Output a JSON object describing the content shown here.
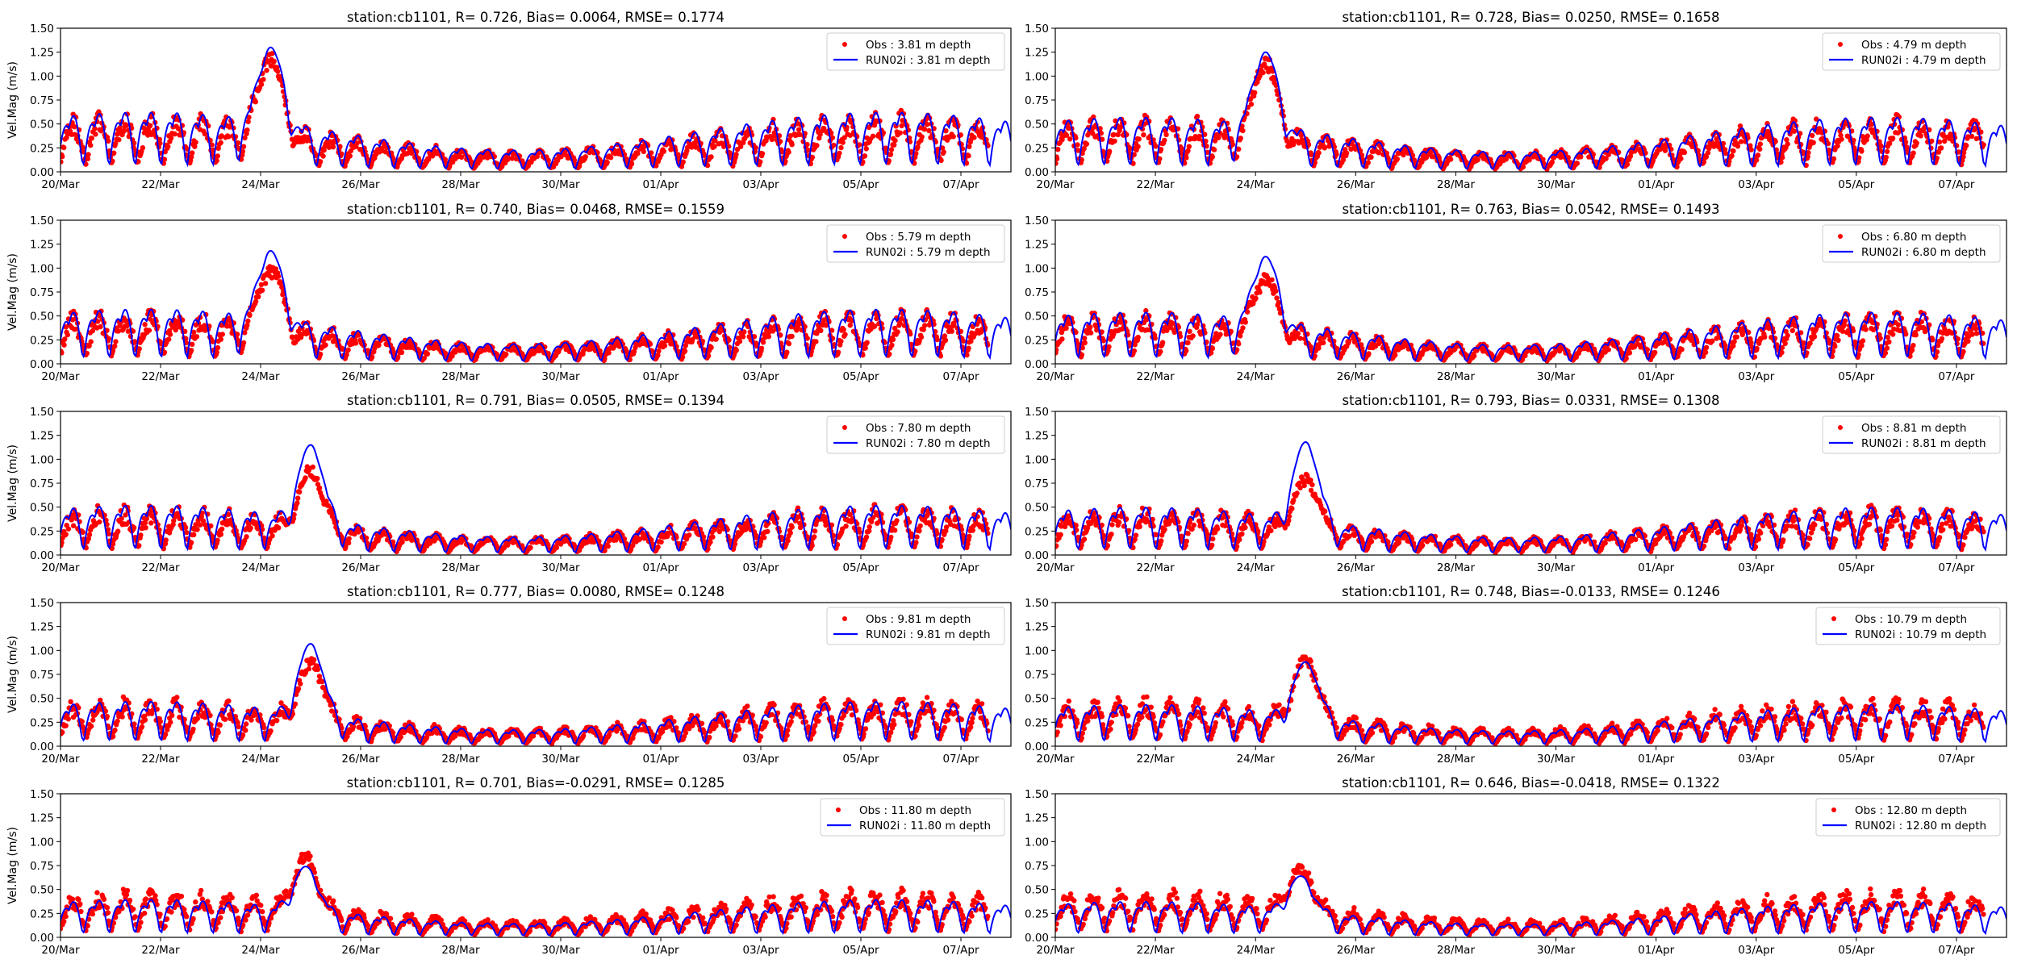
{
  "chart_data": [
    {
      "type": "scatter+line",
      "title": "station:cb1101, R= 0.726, Bias= 0.0064, RMSE= 0.1774",
      "stats": {
        "station": "cb1101",
        "R": 0.726,
        "Bias": 0.0064,
        "RMSE": 0.1774
      },
      "ylabel": "Vel.Mag (m/s)",
      "ylim": [
        0,
        1.5
      ],
      "legend": [
        "Obs : 3.81 m depth",
        "RUN02i : 3.81 m depth"
      ],
      "legend_position": "upper-right",
      "peak": {
        "obs": 1.27,
        "model": 1.3,
        "day": 4.2
      },
      "series": [
        {
          "name": "Obs : 3.81 m depth",
          "kind": "scatter",
          "mean_amplitude": 0.55
        },
        {
          "name": "RUN02i : 3.81 m depth",
          "kind": "line",
          "mean_amplitude": 0.6
        }
      ]
    },
    {
      "type": "scatter+line",
      "title": "station:cb1101, R= 0.728, Bias= 0.0250, RMSE= 0.1658",
      "stats": {
        "station": "cb1101",
        "R": 0.728,
        "Bias": 0.025,
        "RMSE": 0.1658
      },
      "ylabel": "",
      "ylim": [
        0,
        1.5
      ],
      "legend": [
        "Obs : 4.79 m depth",
        "RUN02i : 4.79 m depth"
      ],
      "legend_position": "upper-right",
      "peak": {
        "obs": 1.22,
        "model": 1.25,
        "day": 4.2
      },
      "series": [
        {
          "name": "Obs : 4.79 m depth",
          "kind": "scatter",
          "mean_amplitude": 0.52
        },
        {
          "name": "RUN02i : 4.79 m depth",
          "kind": "line",
          "mean_amplitude": 0.55
        }
      ]
    },
    {
      "type": "scatter+line",
      "title": "station:cb1101, R= 0.740, Bias= 0.0468, RMSE= 0.1559",
      "stats": {
        "station": "cb1101",
        "R": 0.74,
        "Bias": 0.0468,
        "RMSE": 0.1559
      },
      "ylabel": "Vel.Mag (m/s)",
      "ylim": [
        0,
        1.5
      ],
      "legend": [
        "Obs : 5.79 m depth",
        "RUN02i : 5.79 m depth"
      ],
      "legend_position": "upper-right",
      "peak": {
        "obs": 1.05,
        "model": 1.18,
        "day": 4.2
      },
      "series": [
        {
          "name": "Obs : 5.79 m depth",
          "kind": "scatter",
          "mean_amplitude": 0.5
        },
        {
          "name": "RUN02i : 5.79 m depth",
          "kind": "line",
          "mean_amplitude": 0.55
        }
      ]
    },
    {
      "type": "scatter+line",
      "title": "station:cb1101, R= 0.763, Bias= 0.0542, RMSE= 0.1493",
      "stats": {
        "station": "cb1101",
        "R": 0.763,
        "Bias": 0.0542,
        "RMSE": 0.1493
      },
      "ylabel": "",
      "ylim": [
        0,
        1.5
      ],
      "legend": [
        "Obs : 6.80 m depth",
        "RUN02i : 6.80 m depth"
      ],
      "legend_position": "upper-right",
      "peak": {
        "obs": 0.95,
        "model": 1.12,
        "day": 4.2
      },
      "series": [
        {
          "name": "Obs : 6.80 m depth",
          "kind": "scatter",
          "mean_amplitude": 0.48
        },
        {
          "name": "RUN02i : 6.80 m depth",
          "kind": "line",
          "mean_amplitude": 0.52
        }
      ]
    },
    {
      "type": "scatter+line",
      "title": "station:cb1101, R= 0.791, Bias= 0.0505, RMSE= 0.1394",
      "stats": {
        "station": "cb1101",
        "R": 0.791,
        "Bias": 0.0505,
        "RMSE": 0.1394
      },
      "ylabel": "Vel.Mag (m/s)",
      "ylim": [
        0,
        1.5
      ],
      "legend": [
        "Obs : 7.80 m depth",
        "RUN02i : 7.80 m depth"
      ],
      "legend_position": "upper-right",
      "peak": {
        "obs": 0.95,
        "model": 1.15,
        "day": 5.0
      },
      "series": [
        {
          "name": "Obs : 7.80 m depth",
          "kind": "scatter",
          "mean_amplitude": 0.46
        },
        {
          "name": "RUN02i : 7.80 m depth",
          "kind": "line",
          "mean_amplitude": 0.5
        }
      ]
    },
    {
      "type": "scatter+line",
      "title": "station:cb1101, R= 0.793, Bias= 0.0331, RMSE= 0.1308",
      "stats": {
        "station": "cb1101",
        "R": 0.793,
        "Bias": 0.0331,
        "RMSE": 0.1308
      },
      "ylabel": "",
      "ylim": [
        0,
        1.5
      ],
      "legend": [
        "Obs : 8.81 m depth",
        "RUN02i : 8.81 m depth"
      ],
      "legend_position": "upper-right",
      "peak": {
        "obs": 0.85,
        "model": 1.18,
        "day": 5.0
      },
      "series": [
        {
          "name": "Obs : 8.81 m depth",
          "kind": "scatter",
          "mean_amplitude": 0.45
        },
        {
          "name": "RUN02i : 8.81 m depth",
          "kind": "line",
          "mean_amplitude": 0.48
        }
      ]
    },
    {
      "type": "scatter+line",
      "title": "station:cb1101, R= 0.777, Bias= 0.0080, RMSE= 0.1248",
      "stats": {
        "station": "cb1101",
        "R": 0.777,
        "Bias": 0.008,
        "RMSE": 0.1248
      },
      "ylabel": "Vel.Mag (m/s)",
      "ylim": [
        0,
        1.5
      ],
      "legend": [
        "Obs : 9.81 m depth",
        "RUN02i : 9.81 m depth"
      ],
      "legend_position": "upper-right",
      "peak": {
        "obs": 0.95,
        "model": 1.07,
        "day": 5.0
      },
      "series": [
        {
          "name": "Obs : 9.81 m depth",
          "kind": "scatter",
          "mean_amplitude": 0.45
        },
        {
          "name": "RUN02i : 9.81 m depth",
          "kind": "line",
          "mean_amplitude": 0.45
        }
      ]
    },
    {
      "type": "scatter+line",
      "title": "station:cb1101, R= 0.748, Bias=-0.0133, RMSE= 0.1246",
      "stats": {
        "station": "cb1101",
        "R": 0.748,
        "Bias": -0.0133,
        "RMSE": 0.1246
      },
      "ylabel": "",
      "ylim": [
        0,
        1.5
      ],
      "legend": [
        "Obs : 10.79 m depth",
        "RUN02i : 10.79 m depth"
      ],
      "legend_position": "upper-right",
      "peak": {
        "obs": 0.97,
        "model": 0.88,
        "day": 5.0
      },
      "series": [
        {
          "name": "Obs : 10.79 m depth",
          "kind": "scatter",
          "mean_amplitude": 0.45
        },
        {
          "name": "RUN02i : 10.79 m depth",
          "kind": "line",
          "mean_amplitude": 0.42
        }
      ]
    },
    {
      "type": "scatter+line",
      "title": "station:cb1101, R= 0.701, Bias=-0.0291, RMSE= 0.1285",
      "stats": {
        "station": "cb1101",
        "R": 0.701,
        "Bias": -0.0291,
        "RMSE": 0.1285
      },
      "ylabel": "Vel.Mag (m/s)",
      "ylim": [
        0,
        1.5
      ],
      "legend": [
        "Obs : 11.80 m depth",
        "RUN02i : 11.80 m depth"
      ],
      "legend_position": "upper-right",
      "peak": {
        "obs": 0.9,
        "model": 0.74,
        "day": 4.9
      },
      "series": [
        {
          "name": "Obs : 11.80 m depth",
          "kind": "scatter",
          "mean_amplitude": 0.45
        },
        {
          "name": "RUN02i : 11.80 m depth",
          "kind": "line",
          "mean_amplitude": 0.38
        }
      ]
    },
    {
      "type": "scatter+line",
      "title": "station:cb1101, R= 0.646, Bias=-0.0418, RMSE= 0.1322",
      "stats": {
        "station": "cb1101",
        "R": 0.646,
        "Bias": -0.0418,
        "RMSE": 0.1322
      },
      "ylabel": "",
      "ylim": [
        0,
        1.5
      ],
      "legend": [
        "Obs : 12.80 m depth",
        "RUN02i : 12.80 m depth"
      ],
      "legend_position": "upper-right",
      "peak": {
        "obs": 0.78,
        "model": 0.64,
        "day": 4.9
      },
      "series": [
        {
          "name": "Obs : 12.80 m depth",
          "kind": "scatter",
          "mean_amplitude": 0.45
        },
        {
          "name": "RUN02i : 12.80 m depth",
          "kind": "line",
          "mean_amplitude": 0.36
        }
      ]
    }
  ],
  "shared": {
    "xlim_days": [
      0,
      19.0
    ],
    "x_tick_days": [
      0,
      2,
      4,
      6,
      8,
      10,
      12,
      14,
      16,
      18
    ],
    "x_tick_labels": [
      "20/Mar",
      "22/Mar",
      "24/Mar",
      "26/Mar",
      "28/Mar",
      "30/Mar",
      "01/Apr",
      "03/Apr",
      "05/Apr",
      "07/Apr"
    ],
    "y_ticks": [
      0.0,
      0.25,
      0.5,
      0.75,
      1.0,
      1.25,
      1.5
    ],
    "y_tick_labels": [
      "0.00",
      "0.25",
      "0.50",
      "0.75",
      "1.00",
      "1.25",
      "1.50"
    ],
    "colors": {
      "obs": "#ff0000",
      "model": "#0000ff",
      "axis": "#000000",
      "legend_border": "#cccccc"
    }
  }
}
